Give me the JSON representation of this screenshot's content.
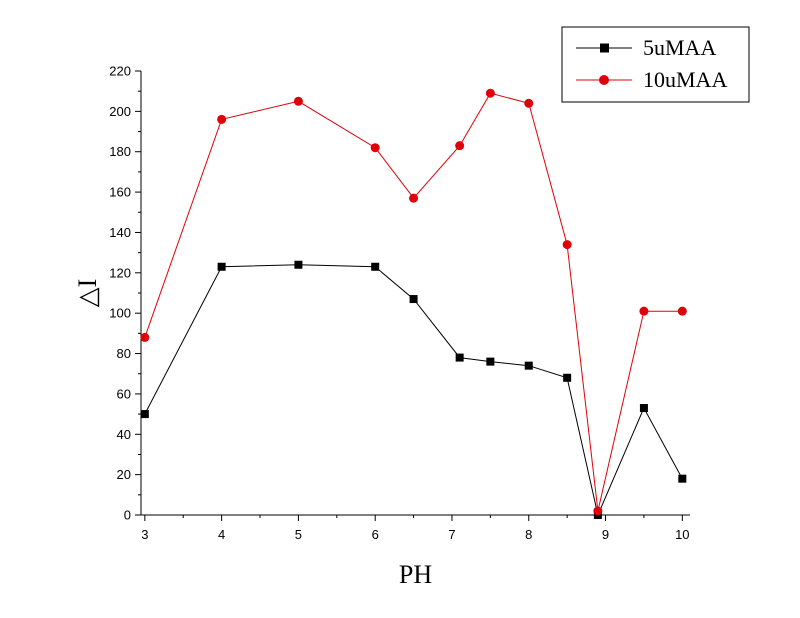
{
  "chart_data": {
    "type": "line",
    "xlabel": "PH",
    "ylabel": "△I",
    "xlim": [
      2.95,
      10.1
    ],
    "ylim": [
      0,
      220
    ],
    "xticks": [
      3,
      4,
      5,
      6,
      7,
      8,
      9,
      10
    ],
    "yticks": [
      0,
      20,
      40,
      60,
      80,
      100,
      120,
      140,
      160,
      180,
      200,
      220
    ],
    "grid": false,
    "legend_position": "top-right",
    "series": [
      {
        "name": "5uMAA",
        "color": "#000000",
        "marker": "square",
        "x": [
          3,
          4,
          5,
          6,
          6.5,
          7.1,
          7.5,
          8,
          8.5,
          8.9,
          9.5,
          10
        ],
        "y": [
          50,
          123,
          124,
          123,
          107,
          78,
          76,
          74,
          68,
          0,
          53,
          18
        ]
      },
      {
        "name": "10uMAA",
        "color": "#e0000a",
        "marker": "circle",
        "x": [
          3,
          4,
          5,
          6,
          6.5,
          7.1,
          7.5,
          8,
          8.5,
          8.9,
          9.5,
          10
        ],
        "y": [
          88,
          196,
          205,
          182,
          157,
          183,
          209,
          204,
          134,
          2,
          101,
          101
        ]
      }
    ]
  }
}
